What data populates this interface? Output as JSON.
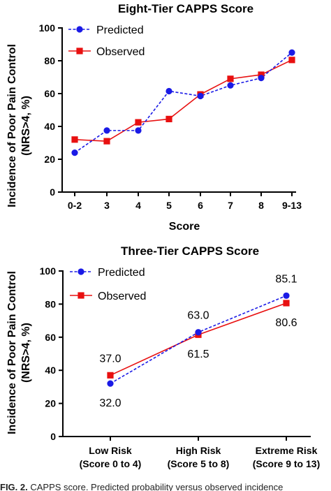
{
  "chart_data": [
    {
      "type": "line",
      "title": "Eight-Tier CAPPS Score",
      "xlabel": "Score",
      "ylabel_line1": "Incidence of Poor Pain Control",
      "ylabel_line2": "(NRS>4, %)",
      "categories": [
        "0-2",
        "3",
        "4",
        "5",
        "6",
        "7",
        "8",
        "9-13"
      ],
      "yticks": [
        "0",
        "20",
        "40",
        "60",
        "80",
        "100"
      ],
      "ylim": [
        0,
        100
      ],
      "legend_position": "top-left",
      "series": [
        {
          "name": "Predicted",
          "color": "#1a1ae6",
          "marker": "circle",
          "dash": true,
          "values": [
            24,
            37.5,
            37.5,
            61.5,
            58.5,
            65,
            69.5,
            85
          ]
        },
        {
          "name": "Observed",
          "color": "#e81010",
          "marker": "square",
          "dash": false,
          "values": [
            32,
            31,
            42.5,
            44.5,
            59.5,
            69,
            71.5,
            80.5
          ]
        }
      ]
    },
    {
      "type": "line",
      "title": "Three-Tier CAPPS Score",
      "ylabel_line1": "Incidence of Poor Pain Control",
      "ylabel_line2": "(NRS>4, %)",
      "categories": [
        {
          "line1": "Low Risk",
          "line2": "(Score 0 to 4)"
        },
        {
          "line1": "High Risk",
          "line2": "(Score 5 to 8)"
        },
        {
          "line1": "Extreme Risk",
          "line2": "(Score 9 to 13)"
        }
      ],
      "yticks": [
        "0",
        "20",
        "40",
        "60",
        "80",
        "100"
      ],
      "ylim": [
        0,
        100
      ],
      "legend_position": "top-left",
      "series": [
        {
          "name": "Predicted",
          "color": "#1a1ae6",
          "marker": "circle",
          "dash": true,
          "values": [
            32.0,
            63.0,
            85.1
          ],
          "labels": [
            "32.0",
            "63.0",
            "85.1"
          ]
        },
        {
          "name": "Observed",
          "color": "#e81010",
          "marker": "square",
          "dash": false,
          "values": [
            37.0,
            61.5,
            80.6
          ],
          "labels": [
            "37.0",
            "61.5",
            "80.6"
          ]
        }
      ]
    }
  ],
  "caption": {
    "fig": "FIG. 2.",
    "text": "CAPPS score. Predicted probability versus observed incidence"
  }
}
